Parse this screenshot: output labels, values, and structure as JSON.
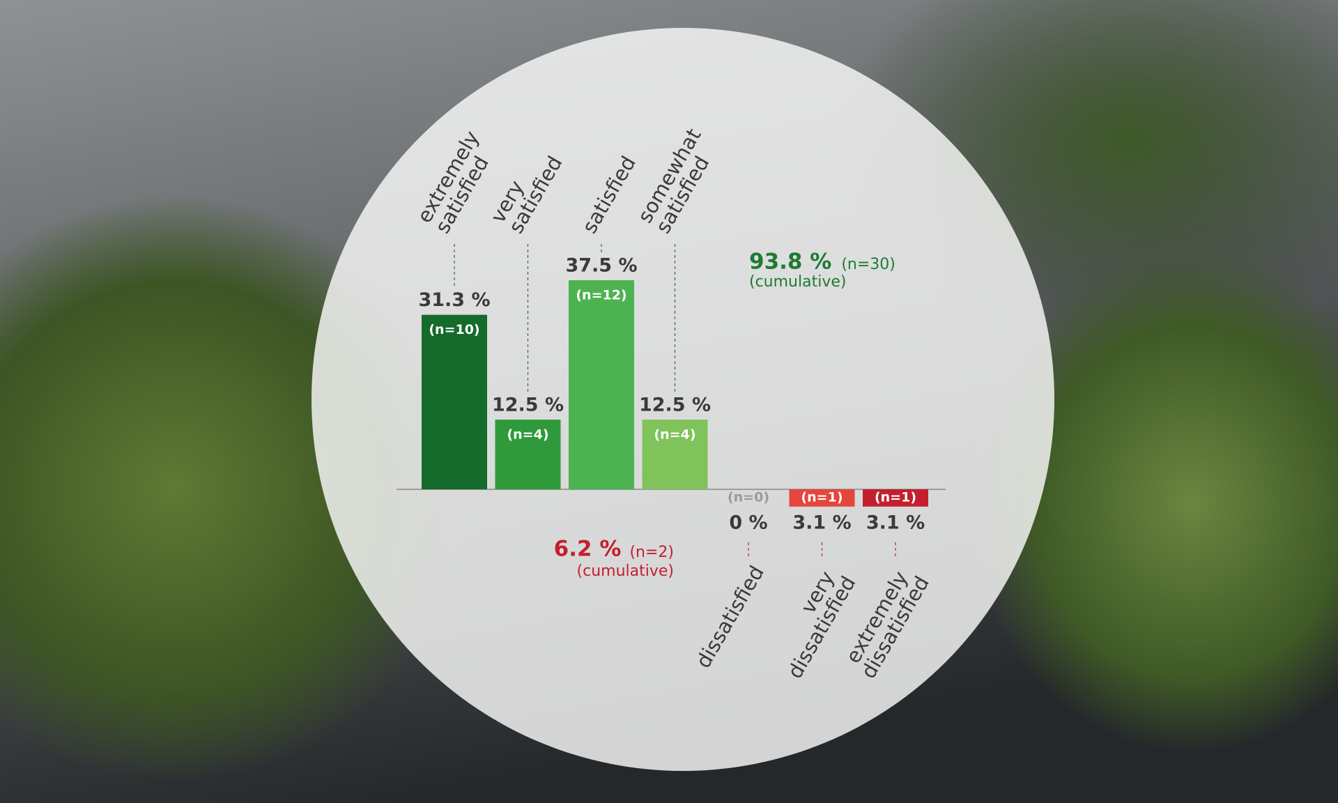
{
  "chart_data": {
    "type": "bar",
    "categories": [
      "extremely satisfied",
      "very satisfied",
      "satisfied",
      "somewhat satisfied",
      "dissatisfied",
      "very dissatisfied",
      "extremely dissatisfied"
    ],
    "values": [
      31.3,
      12.5,
      37.5,
      12.5,
      0,
      3.1,
      3.1
    ],
    "value_labels": [
      "31.3 %",
      "12.5 %",
      "37.5 %",
      "12.5 %",
      "0 %",
      "3.1 %",
      "3.1 %"
    ],
    "count_labels": [
      "(n=10)",
      "(n=4)",
      "(n=12)",
      "(n=4)",
      "(n=0)",
      "(n=1)",
      "(n=1)"
    ],
    "colors": [
      "#146b2b",
      "#2f9a3b",
      "#4db351",
      "#7fc35a",
      "#9a9a9a",
      "#e6453b",
      "#c41f2d"
    ],
    "ylim": [
      0,
      40
    ],
    "annotations": [
      {
        "value_label": "93.8 %",
        "count_label": "(n=30)",
        "note": "(cumulative)",
        "color": "#1f7a33"
      },
      {
        "value_label": "6.2 %",
        "count_label": "(n=2)",
        "note": "(cumulative)",
        "color": "#c41f2d"
      }
    ]
  }
}
